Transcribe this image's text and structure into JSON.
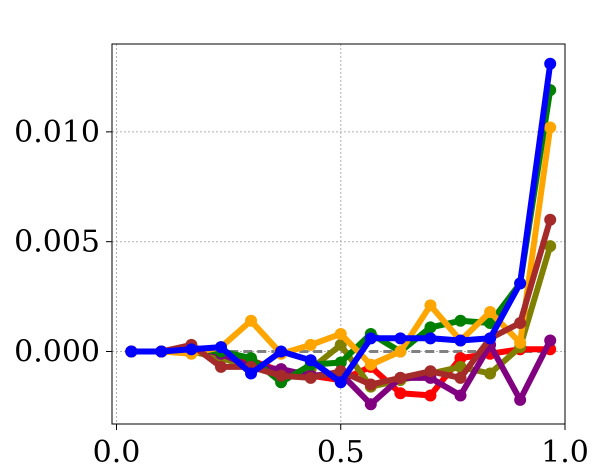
{
  "chart_data": {
    "type": "line",
    "title": "",
    "xlabel": "",
    "ylabel": "",
    "xlim": [
      -0.01,
      1.0
    ],
    "ylim": [
      -0.0033,
      0.014
    ],
    "grid": true,
    "legend": "none",
    "x_ticks": [
      {
        "value": 0.0,
        "label": "0.0"
      },
      {
        "value": 0.5,
        "label": "0.5"
      },
      {
        "value": 1.0,
        "label": "1.0"
      }
    ],
    "y_ticks": [
      {
        "value": 0.0,
        "label": "0.000"
      },
      {
        "value": 0.005,
        "label": "0.005"
      },
      {
        "value": 0.01,
        "label": "0.010"
      }
    ],
    "reference_line": {
      "y": 0.0,
      "color": "#808080",
      "style": "dashed"
    },
    "x": [
      0.033,
      0.1,
      0.167,
      0.233,
      0.3,
      0.367,
      0.433,
      0.5,
      0.567,
      0.633,
      0.7,
      0.767,
      0.833,
      0.9,
      0.967
    ],
    "series": [
      {
        "color": "#ff0000",
        "values": [
          0.0,
          0.0,
          0.0001,
          -0.0001,
          -0.0004,
          -0.0009,
          -0.0011,
          -0.0013,
          -0.0007,
          -0.0019,
          -0.002,
          -0.0003,
          -0.0001,
          0.0001,
          0.0001
        ]
      },
      {
        "color": "#808000",
        "values": [
          0.0,
          0.0,
          0.0,
          -0.0003,
          -0.0007,
          -0.0011,
          -0.0008,
          0.0003,
          -0.0016,
          -0.0013,
          -0.001,
          -0.0007,
          -0.001,
          0.0002,
          0.0048
        ]
      },
      {
        "color": "#800080",
        "values": [
          0.0,
          0.0,
          0.0002,
          -0.0001,
          -0.0007,
          -0.0008,
          -0.0011,
          -0.001,
          -0.0024,
          -0.0012,
          -0.0012,
          -0.002,
          0.0003,
          -0.0022,
          0.0005
        ]
      },
      {
        "color": "#008000",
        "values": [
          0.0,
          0.0,
          0.0001,
          0.0,
          -0.0003,
          -0.0014,
          -0.0006,
          -0.0005,
          0.0008,
          0.0,
          0.0011,
          0.0014,
          0.0013,
          0.0031,
          0.0119
        ]
      },
      {
        "color": "#ffa500",
        "values": [
          0.0,
          0.0,
          -0.0001,
          0.0002,
          0.0014,
          -0.0001,
          0.0003,
          0.0008,
          -0.0006,
          0.0,
          0.0021,
          0.0005,
          0.0018,
          0.0004,
          0.0102
        ]
      },
      {
        "color": "#a52a2a",
        "values": [
          0.0,
          0.0,
          0.0003,
          -0.0007,
          -0.0007,
          -0.0011,
          -0.0012,
          -0.0009,
          -0.0015,
          -0.0012,
          -0.0009,
          -0.0012,
          0.0006,
          0.0013,
          0.006
        ]
      },
      {
        "color": "#0000ff",
        "values": [
          0.0,
          0.0,
          0.0001,
          0.0002,
          -0.001,
          0.0,
          -0.0004,
          -0.0014,
          0.0006,
          0.0006,
          0.0006,
          0.0005,
          0.0006,
          0.0031,
          0.0131
        ]
      }
    ]
  }
}
